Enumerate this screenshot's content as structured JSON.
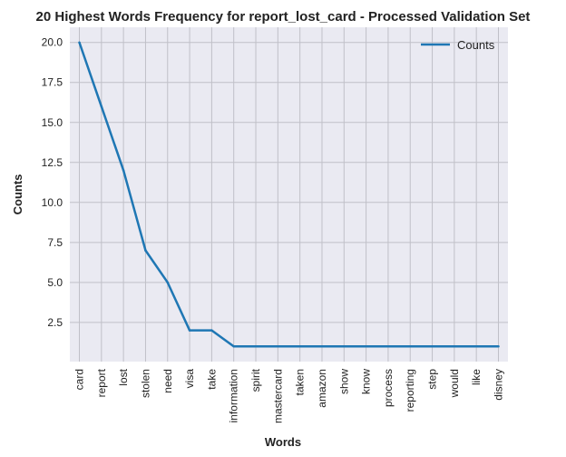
{
  "chart_data": {
    "type": "line",
    "title": "20 Highest Words Frequency for report_lost_card - Processed Validation Set",
    "xlabel": "Words",
    "ylabel": "Counts",
    "categories": [
      "card",
      "report",
      "lost",
      "stolen",
      "need",
      "visa",
      "take",
      "information",
      "spirit",
      "mastercard",
      "taken",
      "amazon",
      "show",
      "know",
      "process",
      "reporting",
      "step",
      "would",
      "like",
      "disney"
    ],
    "series": [
      {
        "name": "Counts",
        "values": [
          20,
          16,
          12,
          7,
          5,
          2,
          2,
          1,
          1,
          1,
          1,
          1,
          1,
          1,
          1,
          1,
          1,
          1,
          1,
          1
        ]
      }
    ],
    "yticks": [
      "2.5",
      "5.0",
      "7.5",
      "10.0",
      "12.5",
      "15.0",
      "17.5",
      "20.0"
    ],
    "ylim": [
      0.05,
      20.95
    ],
    "grid": true,
    "legend": "top-right",
    "colors": {
      "line": "#1f77b4",
      "background": "#eaeaf2",
      "grid": "#c0c0c8"
    }
  }
}
